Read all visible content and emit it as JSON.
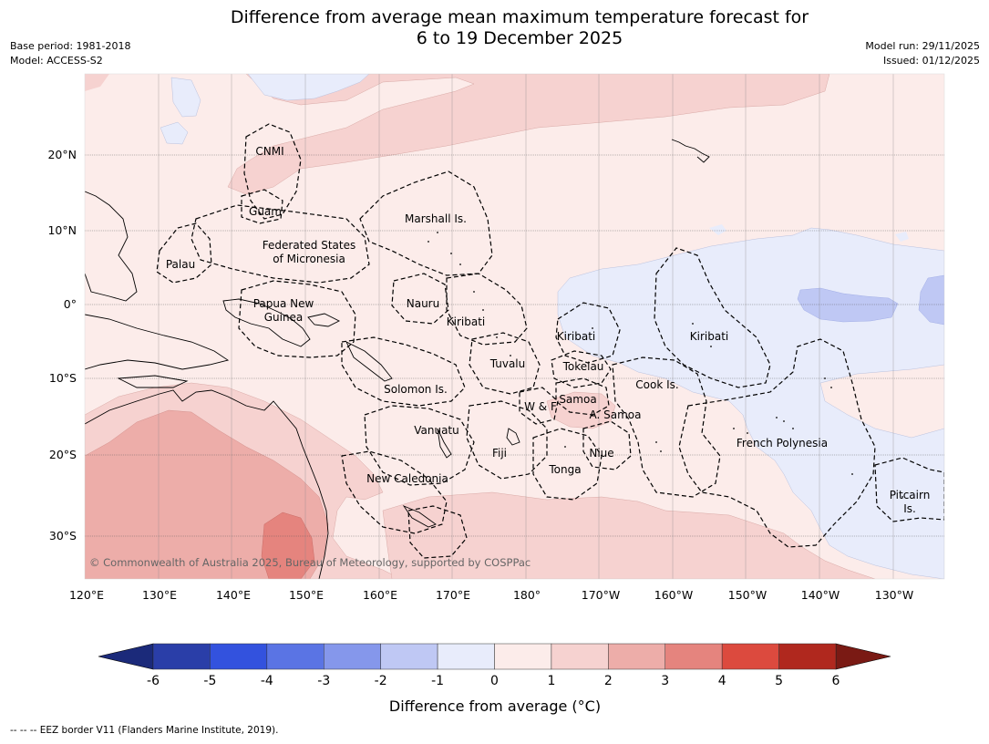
{
  "header": {
    "title_line1": "Difference from average mean maximum temperature forecast for",
    "title_line2": "6 to 19 December 2025",
    "base_period": "Base period: 1981-2018",
    "model": "Model: ACCESS-S2",
    "model_run": "Model run: 29/11/2025",
    "issued": "Issued: 01/12/2025"
  },
  "axes": {
    "lon_labels": [
      "120°E",
      "130°E",
      "140°E",
      "150°E",
      "160°E",
      "170°E",
      "180°",
      "170°W",
      "160°W",
      "150°W",
      "140°W",
      "130°W"
    ],
    "lat_labels": [
      "20°N",
      "10°N",
      "0°",
      "10°S",
      "20°S",
      "30°S"
    ]
  },
  "regions": [
    {
      "key": "cnmi",
      "text": "CNMI"
    },
    {
      "key": "guam",
      "text": "Guam"
    },
    {
      "key": "marshall",
      "text": "Marshall Is."
    },
    {
      "key": "fsm1",
      "text": "Federated States"
    },
    {
      "key": "fsm2",
      "text": "of Micronesia"
    },
    {
      "key": "palau",
      "text": "Palau"
    },
    {
      "key": "png1",
      "text": "Papua New"
    },
    {
      "key": "png2",
      "text": "Guinea"
    },
    {
      "key": "nauru",
      "text": "Nauru"
    },
    {
      "key": "kiribati_w",
      "text": "Kiribati"
    },
    {
      "key": "kiribati_c",
      "text": "Kiribati"
    },
    {
      "key": "kiribati_e",
      "text": "Kiribati"
    },
    {
      "key": "tuvalu",
      "text": "Tuvalu"
    },
    {
      "key": "tokelau",
      "text": "Tokelau"
    },
    {
      "key": "cook",
      "text": "Cook Is."
    },
    {
      "key": "solomon",
      "text": "Solomon Is."
    },
    {
      "key": "wf",
      "text": "W & F"
    },
    {
      "key": "samoa",
      "text": "Samoa"
    },
    {
      "key": "asamoa",
      "text": "A. Samoa"
    },
    {
      "key": "vanuatu",
      "text": "Vanuatu"
    },
    {
      "key": "fiji",
      "text": "Fiji"
    },
    {
      "key": "niue",
      "text": "Niue"
    },
    {
      "key": "frpoly",
      "text": "French Polynesia"
    },
    {
      "key": "tonga",
      "text": "Tonga"
    },
    {
      "key": "newcal",
      "text": "New Caledonia"
    },
    {
      "key": "pitcairn1",
      "text": "Pitcairn"
    },
    {
      "key": "pitcairn2",
      "text": "Is."
    }
  ],
  "copyright": "© Commonwealth of Australia 2025, Bureau of Meteorology, supported by COSPPac",
  "colorbar": {
    "ticks": [
      "-6",
      "-5",
      "-4",
      "-3",
      "-2",
      "-1",
      "0",
      "1",
      "2",
      "3",
      "4",
      "5",
      "6"
    ],
    "colors": [
      "#2a3ea8",
      "#3352de",
      "#5a74e4",
      "#8597eb",
      "#bfc8f4",
      "#e8ecfb",
      "#fcecea",
      "#f6d2d0",
      "#edada9",
      "#e5847e",
      "#dc4a3e",
      "#b0281e"
    ],
    "under_color": "#1b2a7a",
    "over_color": "#7a1a14",
    "label": "Difference from average (°C)"
  },
  "footnote": "--  --  -- EEZ border V11 (Flanders Marine Institute, 2019).",
  "colors": {
    "base_pink": "#fcecea",
    "light_red": "#f6d2d0",
    "medium_red": "#edada9",
    "strong_red": "#e5847e",
    "light_blue": "#e8ecfb",
    "mid_blue": "#bfc8f4"
  }
}
